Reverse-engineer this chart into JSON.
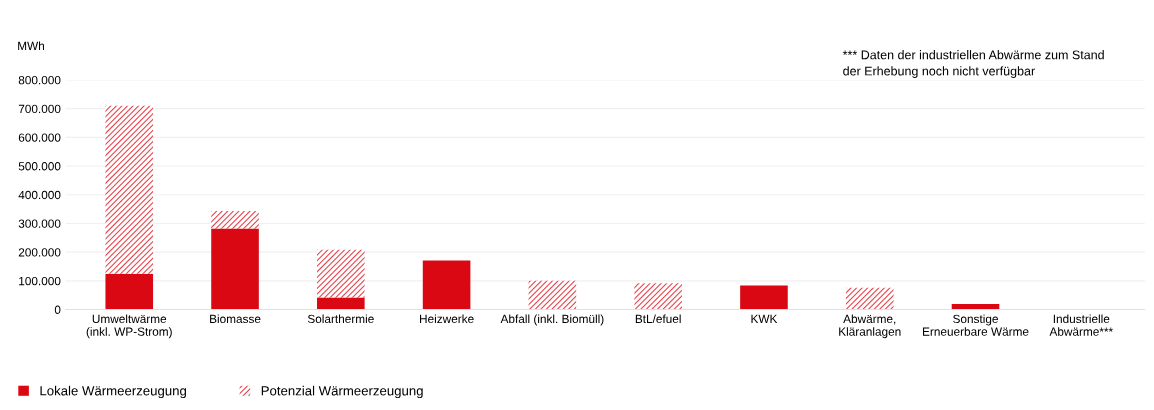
{
  "chart_data": {
    "type": "bar",
    "stacked": true,
    "ylabel": "MWh",
    "categories": [
      "Umweltwärme\n(inkl. WP-Strom)",
      "Biomasse",
      "Solarthermie",
      "Heizwerke",
      "Abfall (inkl. Biomüll)",
      "BtL/efuel",
      "KWK",
      "Abwärme,\nKläranlagen",
      "Sonstige\nErneuerbare Wärme",
      "Industrielle\nAbwärme***"
    ],
    "series": [
      {
        "name": "Lokale Wärmeerzeugung",
        "color": "#d90812",
        "values": [
          125000,
          282000,
          42000,
          171000,
          0,
          0,
          84000,
          0,
          19000,
          0
        ]
      },
      {
        "name": "Potenzial Wärmeerzeugung",
        "color": "#e8464e",
        "values": [
          585000,
          61000,
          166000,
          0,
          100000,
          92000,
          0,
          76000,
          0,
          0
        ]
      }
    ],
    "ylim": [
      0,
      800000
    ],
    "yticks": [
      0,
      {
        "value": 100000,
        "label": "100.000"
      },
      {
        "value": 200000,
        "label": "200.000"
      },
      {
        "value": 300000,
        "label": "300.000"
      },
      {
        "value": 400000,
        "label": "400.000"
      },
      {
        "value": 500000,
        "label": "500.000"
      },
      {
        "value": 600000,
        "label": "600.000"
      },
      {
        "value": 700000,
        "label": "700.000"
      },
      {
        "value": 800000,
        "label": "800.000"
      }
    ],
    "grid": "y",
    "legend": "bottom left",
    "annotations": [
      "*** Daten der industriellen Abwärme zum Stand\nder Erhebung noch nicht verfügbar"
    ]
  }
}
